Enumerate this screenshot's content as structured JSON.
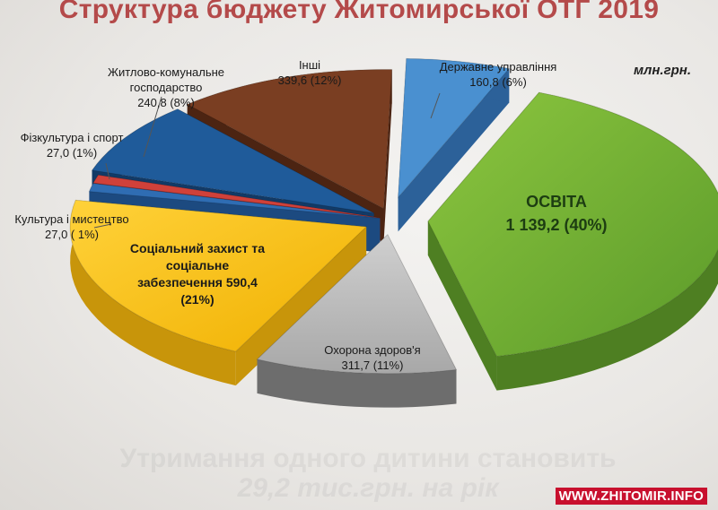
{
  "watermark": "WWW.ZHITOMIR.INFO",
  "bleed": {
    "line1": "Утримання одного дитини становить",
    "line2": "29,2 тис.грн. на рік"
  },
  "chart_data": {
    "type": "pie",
    "title": "Структура бюджету Житомирської ОТГ 2019",
    "units": "млн.грн.",
    "series": [
      {
        "name": "Освіта",
        "value": 1139.2,
        "percent": 40,
        "color": "#7cb83a",
        "side": "#4e7f22"
      },
      {
        "name": "Охорона здоров'я",
        "value": 311.7,
        "percent": 11,
        "color": "#bdbdbd",
        "side": "#6d6d6d"
      },
      {
        "name": "Соціальний захист та соціальне забезпечення",
        "value": 590.4,
        "percent": 21,
        "color": "#f7c21b",
        "side": "#c8950a"
      },
      {
        "name": "Культура і мистецтво",
        "value": 27.0,
        "percent": 1,
        "color": "#2f6db3",
        "side": "#1c4a80"
      },
      {
        "name": "Фізкультура і спорт",
        "value": 27.0,
        "percent": 1,
        "color": "#d0413a",
        "side": "#8e2620"
      },
      {
        "name": "Житлово-комунальне господарство",
        "value": 240.8,
        "percent": 8,
        "color": "#1f5b9a",
        "side": "#123a66"
      },
      {
        "name": "Інші",
        "value": 339.6,
        "percent": 12,
        "color": "#7a3e22",
        "side": "#4c2412"
      },
      {
        "name": "Державне управління",
        "value": 160.8,
        "percent": 6,
        "color": "#4a90d0",
        "side": "#2c6199"
      }
    ],
    "labels": [
      {
        "line1": "ОСВІТА",
        "line2": "1 139,2 (40%)"
      },
      {
        "line1": "Соціальний захист та",
        "line2": "соціальне",
        "line3": "забезпечення  590,4",
        "line4": "(21%)"
      },
      {
        "line1": "Охорона здоров'я",
        "line2": "311,7 (11%)"
      },
      {
        "line1": "Інші",
        "line2": "339,6 (12%)"
      },
      {
        "line1": "Житлово-комунальне",
        "line2": "господарство",
        "line3": "240,8 (8%)"
      },
      {
        "line1": "Державне управління",
        "line2": "160,8 (6%)"
      },
      {
        "line1": "Фізкультура і спорт",
        "line2": "27,0 (1%)"
      },
      {
        "line1": "Культура і мистецтво",
        "line2": "27,0 ( 1%)"
      }
    ]
  }
}
